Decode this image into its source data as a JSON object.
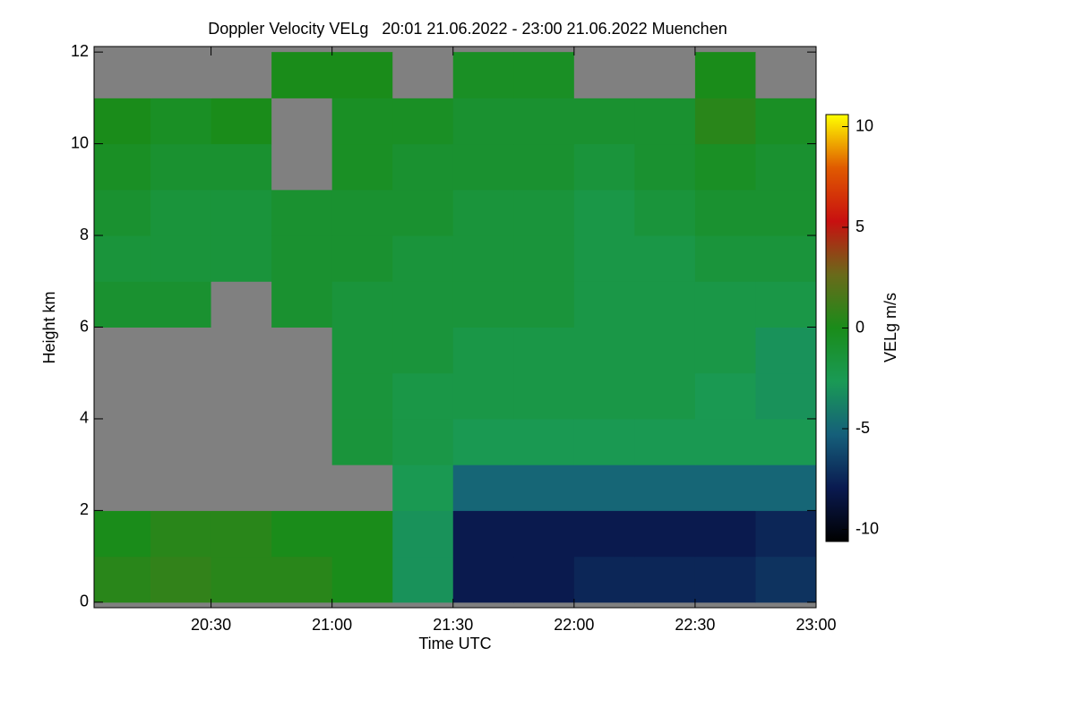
{
  "chart_data": {
    "type": "heatmap",
    "title": "Doppler Velocity VELg   20:01 21.06.2022 - 23:00 21.06.2022 Muenchen",
    "x_label": "Time UTC",
    "y_label": "Height km",
    "xlim": [
      1201,
      1380
    ],
    "xticks": [
      {
        "value": 1230,
        "label": "20:30"
      },
      {
        "value": 1260,
        "label": "21:00"
      },
      {
        "value": 1290,
        "label": "21:30"
      },
      {
        "value": 1320,
        "label": "22:00"
      },
      {
        "value": 1350,
        "label": "22:30"
      },
      {
        "value": 1380,
        "label": "23:00"
      }
    ],
    "ylim": [
      -0.12,
      12.12
    ],
    "yticks": [
      0,
      2,
      4,
      6,
      8,
      10,
      12
    ],
    "x_edges": [
      1201,
      1215,
      1230,
      1245,
      1260,
      1275,
      1290,
      1305,
      1320,
      1335,
      1350,
      1365,
      1380
    ],
    "y_edges": [
      0,
      1,
      2,
      3,
      4,
      5,
      6,
      7,
      8,
      9,
      10,
      11,
      12
    ],
    "values": [
      [
        0.5,
        0.8,
        0.5,
        0.5,
        0,
        -3,
        -8,
        -8,
        -7.5,
        -7.5,
        -7.5,
        -7
      ],
      [
        0,
        0.5,
        0.5,
        0,
        0,
        -3,
        -8,
        -8,
        -8,
        -8,
        -8,
        -7.5
      ],
      [
        null,
        null,
        null,
        null,
        null,
        -2.5,
        -5,
        -5,
        -5,
        -5,
        -5,
        -5
      ],
      [
        null,
        null,
        null,
        null,
        -1.5,
        -2,
        -2.5,
        -2.5,
        -2.5,
        -2.5,
        -2.5,
        -2.5
      ],
      [
        null,
        null,
        null,
        null,
        -1.5,
        -2,
        -2,
        -2,
        -2,
        -2,
        -2.5,
        -3
      ],
      [
        null,
        null,
        null,
        null,
        -1.5,
        -1.5,
        -2,
        -2,
        -2,
        -2,
        -2,
        -3
      ],
      [
        -1,
        -1,
        null,
        -1,
        -1.5,
        -1.5,
        -1.5,
        -1.5,
        -2,
        -2,
        -2,
        -2
      ],
      [
        -1.5,
        -1.5,
        -1.5,
        -1,
        -1,
        -1.5,
        -1.5,
        -1.5,
        -2,
        -2,
        -1.5,
        -1.5
      ],
      [
        -1,
        -1.5,
        -1.5,
        -1,
        -1,
        -1,
        -1.5,
        -1.5,
        -2,
        -1.5,
        -1,
        -1
      ],
      [
        -0.5,
        -1,
        -1,
        null,
        -0.5,
        -1,
        -1,
        -1,
        -1.5,
        -1,
        -0.5,
        -1
      ],
      [
        0,
        -0.5,
        0,
        null,
        -0.5,
        -0.5,
        -1,
        -1,
        -1,
        -1,
        0.5,
        -0.5
      ],
      [
        null,
        null,
        null,
        0,
        0,
        null,
        -0.5,
        -0.5,
        null,
        null,
        0,
        null
      ]
    ],
    "nan_color": "#808080",
    "colorbar": {
      "label": "VELg m/s",
      "lim": [
        -10.6,
        10.6
      ],
      "ticks": [
        -10,
        -5,
        0,
        5,
        10
      ],
      "colormap": [
        "#000000",
        "#0a1a50",
        "#155f7a",
        "#1a9a55",
        "#1a8c1a",
        "#6a6a1a",
        "#c81010",
        "#e05a00",
        "#ffff00"
      ]
    }
  }
}
